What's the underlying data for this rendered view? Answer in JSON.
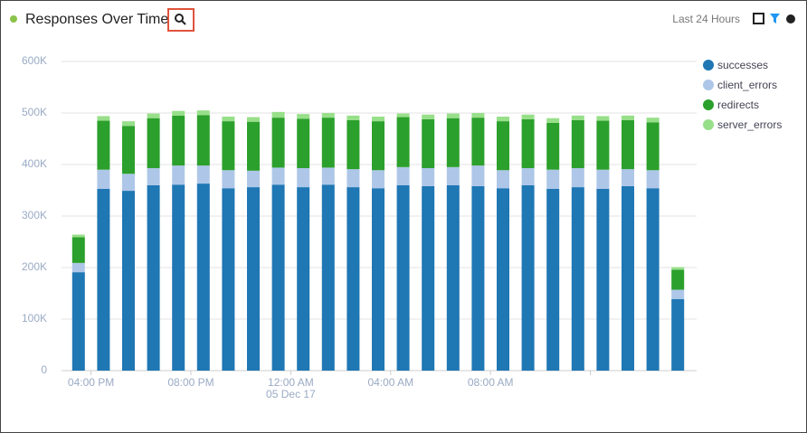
{
  "header": {
    "title": "Responses Over Time",
    "time_range": "Last 24 Hours"
  },
  "chart_data": {
    "type": "stacked-bar",
    "categories": [
      null,
      "04:00 PM",
      null,
      null,
      null,
      "08:00 PM",
      null,
      null,
      null,
      "12:00 AM",
      null,
      null,
      null,
      "04:00 AM",
      null,
      null,
      null,
      "08:00 AM",
      null,
      null,
      null,
      null,
      null,
      null,
      null
    ],
    "category_sublabels": [
      null,
      null,
      null,
      null,
      null,
      null,
      null,
      null,
      null,
      "05 Dec 17",
      null,
      null,
      null,
      null,
      null,
      null,
      null,
      null,
      null,
      null,
      null,
      null,
      null,
      null,
      null
    ],
    "series": [
      {
        "name": "successes",
        "color": "#1f77b4",
        "values": [
          191000,
          353000,
          349000,
          360000,
          361000,
          363000,
          354000,
          356000,
          361000,
          356000,
          361000,
          356000,
          354000,
          360000,
          358000,
          360000,
          358000,
          354000,
          360000,
          353000,
          356000,
          353000,
          358000,
          354000,
          139000
        ]
      },
      {
        "name": "client_errors",
        "color": "#aec7e8",
        "values": [
          18000,
          37000,
          33000,
          33000,
          37000,
          35000,
          35000,
          32000,
          33000,
          37000,
          33000,
          35000,
          35000,
          35000,
          35000,
          35000,
          40000,
          35000,
          33000,
          37000,
          37000,
          37000,
          33000,
          35000,
          18000
        ]
      },
      {
        "name": "redirects",
        "color": "#2ca02c",
        "values": [
          50000,
          95000,
          93000,
          97000,
          97000,
          98000,
          95000,
          95000,
          97000,
          96000,
          97000,
          95000,
          95000,
          97000,
          95000,
          95000,
          93000,
          95000,
          95000,
          91000,
          93000,
          95000,
          95000,
          93000,
          39000
        ]
      },
      {
        "name": "server_errors",
        "color": "#98df8a",
        "values": [
          5000,
          9000,
          9000,
          9000,
          9000,
          9000,
          9000,
          9000,
          11000,
          9000,
          9000,
          9000,
          9000,
          7000,
          9000,
          9000,
          9000,
          9000,
          9000,
          9000,
          9000,
          9000,
          9000,
          9000,
          5000
        ]
      }
    ],
    "ylim": [
      0,
      600000
    ],
    "yticks": [
      0,
      {
        "value": 100000,
        "label": "100K"
      },
      {
        "value": 200000,
        "label": "200K"
      },
      {
        "value": 300000,
        "label": "300K"
      },
      {
        "value": 400000,
        "label": "400K"
      },
      {
        "value": 500000,
        "label": "500K"
      },
      {
        "value": 600000,
        "label": "600K"
      }
    ],
    "grid": true,
    "legend": "right"
  }
}
